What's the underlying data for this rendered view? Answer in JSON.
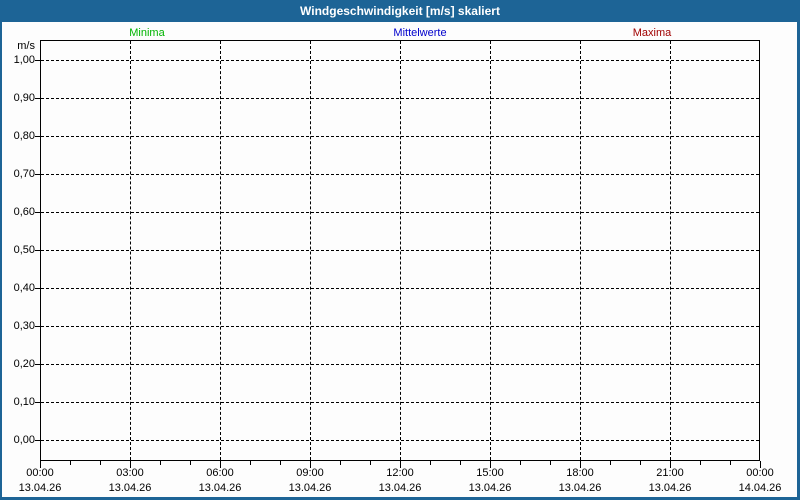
{
  "title": "Windgeschwindigkeit [m/s] skaliert",
  "colors": {
    "frame": "#1d6496",
    "titlebar_bg": "#1d6496",
    "titlebar_text": "#ffffff",
    "background": "#fdfdfd",
    "grid": "#000000",
    "minima": "#00b400",
    "mittelwerte": "#0000cc",
    "maxima": "#a00000"
  },
  "legend": {
    "minima": {
      "label": "Minima",
      "color": "#00b400"
    },
    "mittelwerte": {
      "label": "Mittelwerte",
      "color": "#0000cc"
    },
    "maxima": {
      "label": "Maxima",
      "color": "#a00000"
    }
  },
  "chart_data": {
    "type": "line",
    "title": "Windgeschwindigkeit [m/s] skaliert",
    "ylabel": "m/s",
    "ylim": [
      -0.05,
      1.05
    ],
    "ytick_values": [
      1.0,
      0.9,
      0.8,
      0.7,
      0.6,
      0.5,
      0.4,
      0.3,
      0.2,
      0.1,
      0.0
    ],
    "ytick_labels": [
      "1,00",
      "0,90",
      "0,80",
      "0,70",
      "0,60",
      "0,50",
      "0,40",
      "0,30",
      "0,20",
      "0,10",
      "0,00"
    ],
    "xticks": [
      {
        "time": "00:00",
        "date": "13.04.26"
      },
      {
        "time": "03:00",
        "date": "13.04.26"
      },
      {
        "time": "06:00",
        "date": "13.04.26"
      },
      {
        "time": "09:00",
        "date": "13.04.26"
      },
      {
        "time": "12:00",
        "date": "13.04.26"
      },
      {
        "time": "15:00",
        "date": "13.04.26"
      },
      {
        "time": "18:00",
        "date": "13.04.26"
      },
      {
        "time": "21:00",
        "date": "13.04.26"
      },
      {
        "time": "00:00",
        "date": "14.04.26"
      }
    ],
    "minor_xticks": "hourly",
    "grid": "dashed",
    "legend_position": "top",
    "series": [
      {
        "name": "Minima",
        "color": "#00b400",
        "values": []
      },
      {
        "name": "Mittelwerte",
        "color": "#0000cc",
        "values": []
      },
      {
        "name": "Maxima",
        "color": "#a00000",
        "values": []
      }
    ]
  }
}
